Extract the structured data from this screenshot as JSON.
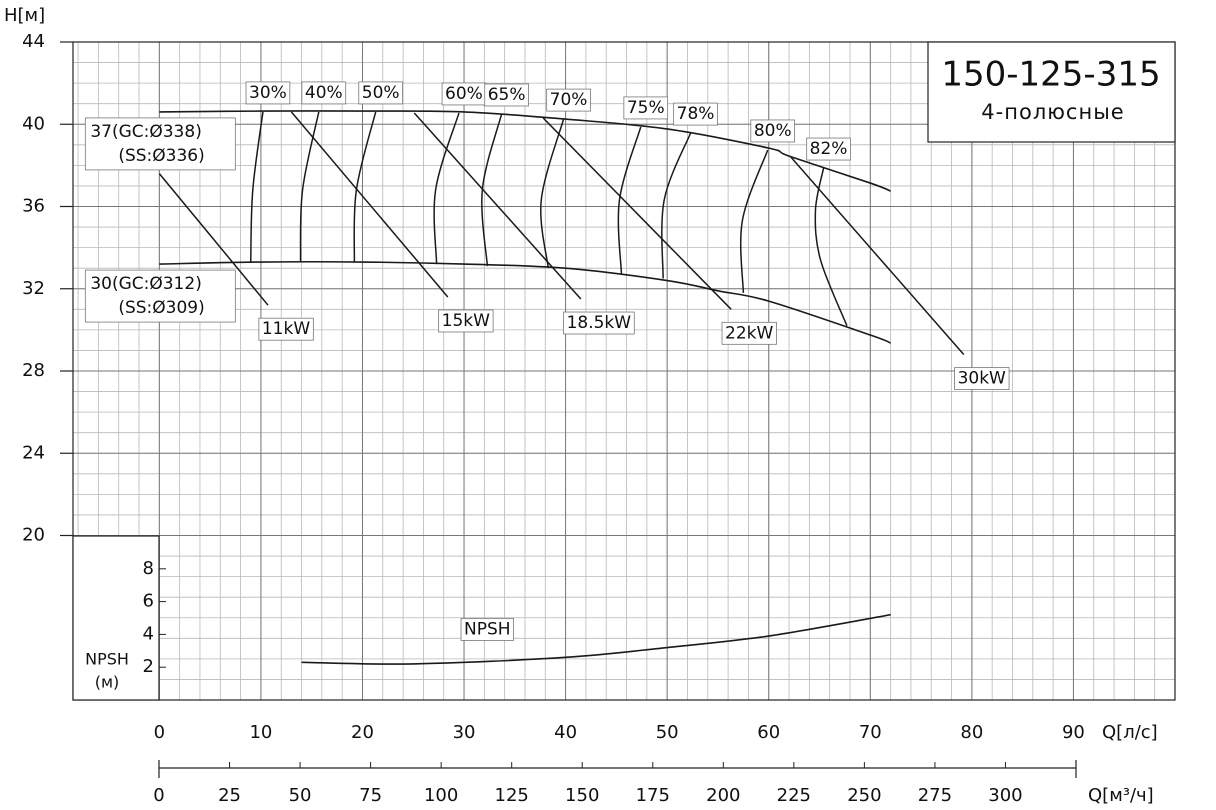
{
  "chart_data": {
    "type": "pump-curve",
    "title": "150-125-315",
    "subtitle": "4-полюсные",
    "y_label": "H[м]",
    "x_label": "Q[л/с]",
    "x2_label": "Q[м³/ч]",
    "npsh_label": "NPSH",
    "npsh_unit": "(м)",
    "xlim": [
      -8.5,
      100
    ],
    "xticks": [
      0,
      10,
      20,
      30,
      40,
      50,
      60,
      70,
      80,
      90
    ],
    "ylim": [
      12,
      44
    ],
    "yticks": [
      20,
      24,
      28,
      32,
      36,
      40,
      44
    ],
    "x2lim": [
      0,
      325
    ],
    "x2ticks": [
      0,
      25,
      50,
      75,
      100,
      125,
      150,
      175,
      200,
      225,
      250,
      275,
      300
    ],
    "npsh_ylim": [
      0,
      10
    ],
    "npsh_yticks": [
      2,
      4,
      6,
      8
    ],
    "grid": true,
    "color": "#1a1a1a",
    "head_curves": [
      {
        "label_lines": [
          "37(GC:Ø338)",
          "(SS:Ø336)"
        ],
        "x": [
          0,
          10,
          20,
          30,
          40,
          50,
          60,
          62,
          70,
          72
        ],
        "y": [
          40.6,
          40.64,
          40.64,
          40.6,
          40.25,
          39.77,
          38.84,
          38.45,
          37.14,
          36.75
        ]
      },
      {
        "label_lines": [
          "30(GC:Ø312)",
          "(SS:Ø309)"
        ],
        "x": [
          0,
          10,
          20,
          30,
          40,
          50,
          55,
          60,
          70,
          72
        ],
        "y": [
          33.2,
          33.3,
          33.3,
          33.2,
          33.0,
          32.4,
          31.9,
          31.4,
          29.75,
          29.36
        ]
      }
    ],
    "efficiency_curves": [
      {
        "name": "30%",
        "x": [
          10.2,
          9.2,
          9.0
        ],
        "y": [
          40.6,
          36.8,
          33.3
        ]
      },
      {
        "name": "40%",
        "x": [
          15.7,
          14.1,
          13.9
        ],
        "y": [
          40.6,
          36.8,
          33.3
        ]
      },
      {
        "name": "50%",
        "x": [
          21.3,
          19.4,
          19.2
        ],
        "y": [
          40.6,
          36.8,
          33.3
        ]
      },
      {
        "name": "60%",
        "x": [
          29.5,
          27.2,
          27.3
        ],
        "y": [
          40.55,
          36.8,
          33.2
        ]
      },
      {
        "name": "65%",
        "x": [
          33.7,
          31.8,
          32.3
        ],
        "y": [
          40.5,
          36.8,
          33.1
        ]
      },
      {
        "name": "70%",
        "x": [
          39.8,
          37.6,
          38.3
        ],
        "y": [
          40.25,
          36.3,
          33.0
        ]
      },
      {
        "name": "75%",
        "x": [
          47.4,
          45.3,
          45.5
        ],
        "y": [
          39.87,
          36.3,
          32.7
        ]
      },
      {
        "name": "78%",
        "x": [
          52.3,
          49.7,
          49.6
        ],
        "y": [
          39.57,
          36.3,
          32.5
        ]
      },
      {
        "name": "80%",
        "x": [
          59.9,
          57.4,
          57.5
        ],
        "y": [
          38.75,
          35.3,
          31.8
        ]
      },
      {
        "name": "82%",
        "x": [
          65.4,
          64.6,
          65.1,
          67.7
        ],
        "y": [
          37.87,
          35.8,
          33.4,
          30.2
        ]
      }
    ],
    "power_lines": [
      {
        "name": "11kW",
        "x": [
          0,
          10.7
        ],
        "y": [
          37.6,
          31.2
        ]
      },
      {
        "name": "15kW",
        "x": [
          13.0,
          28.4
        ],
        "y": [
          40.6,
          31.6
        ]
      },
      {
        "name": "18.5kW",
        "x": [
          25.1,
          41.5
        ],
        "y": [
          40.55,
          31.5
        ]
      },
      {
        "name": "22kW",
        "x": [
          37.8,
          56.3
        ],
        "y": [
          40.3,
          31.0
        ]
      },
      {
        "name": "30kW",
        "x": [
          62.1,
          79.2
        ],
        "y": [
          38.45,
          28.8
        ]
      }
    ],
    "npsh": {
      "name": "NPSH",
      "x": [
        14,
        25,
        40,
        50,
        60,
        72
      ],
      "values": [
        2.3,
        2.2,
        2.6,
        3.2,
        3.9,
        5.2
      ]
    }
  }
}
